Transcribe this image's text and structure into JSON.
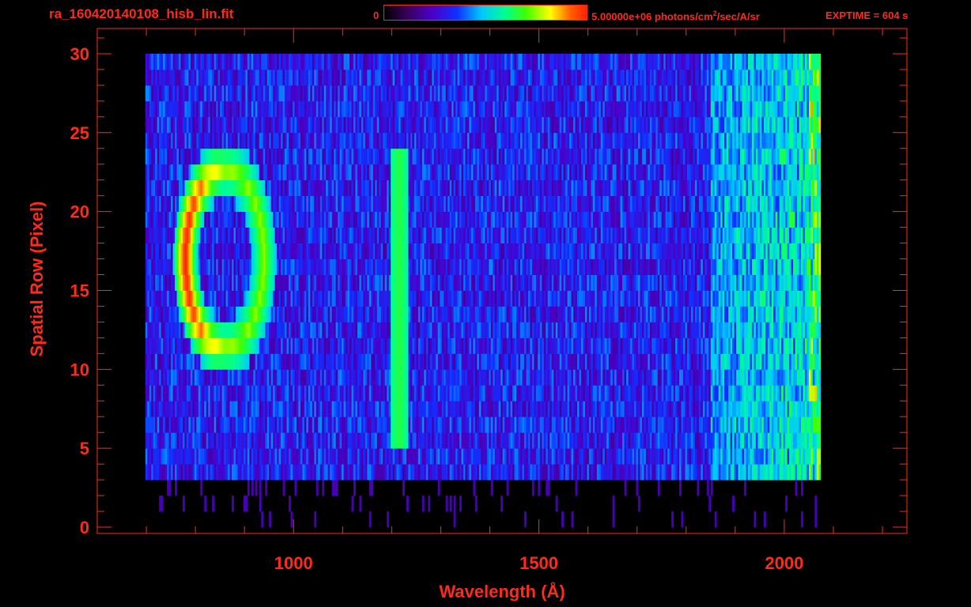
{
  "header": {
    "filename": "ra_160420140108_hisb_lin.fit",
    "colorbar_min": "0",
    "colorbar_max_prefix": "5.00000e+06 photons/cm",
    "colorbar_max_sup": "2",
    "colorbar_max_suffix": "/sec/A/sr",
    "exptime": "EXPTIME = 604 s"
  },
  "colors": {
    "axis": "#ff2a1a",
    "background": "#000000",
    "colormap": [
      "#000000",
      "#3a0060",
      "#4a00c8",
      "#1030ff",
      "#00c8ff",
      "#00ff90",
      "#40ff00",
      "#ffff00",
      "#ff6000",
      "#ff2000"
    ]
  },
  "chart_data": {
    "type": "heatmap",
    "title": "ra_160420140108_hisb_lin.fit",
    "xlabel": "Wavelength (Å)",
    "ylabel": "Spatial Row (Pixel)",
    "xlim": [
      600,
      2250
    ],
    "ylim": [
      -0.4,
      31.6
    ],
    "x_ticks": [
      1000,
      1500,
      2000
    ],
    "y_ticks": [
      0,
      5,
      10,
      15,
      20,
      25,
      30
    ],
    "colorbar_range": [
      0,
      5000000
    ],
    "colorbar_units": "photons/cm^2/sec/A/sr",
    "exptime_s": 604,
    "features": [
      {
        "name": "broad emission ring",
        "x_range": [
          760,
          960
        ],
        "y_range": [
          10,
          24
        ],
        "peak_x": 790,
        "peak_y_range": [
          13,
          21
        ],
        "peak_level": 1.0
      },
      {
        "name": "narrow emission line",
        "x_center": 1215,
        "y_range": [
          5,
          24
        ],
        "level": 0.62
      },
      {
        "name": "continuum",
        "x_range": [
          700,
          2075
        ],
        "y_range": [
          3,
          30
        ],
        "level": 0.3
      }
    ]
  }
}
